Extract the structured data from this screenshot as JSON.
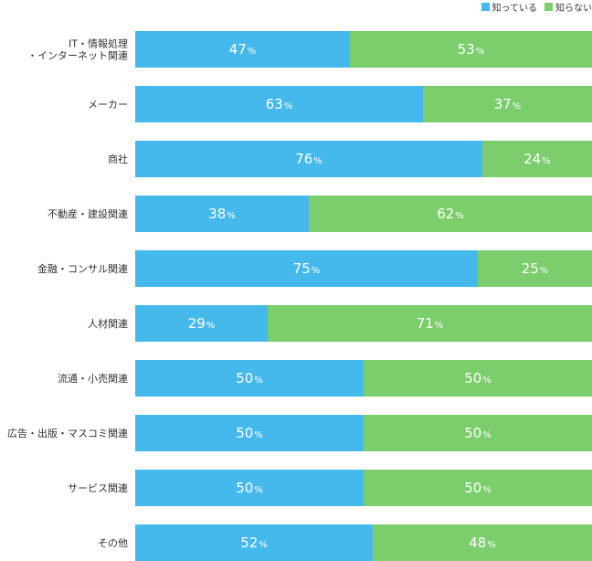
{
  "chart_data": {
    "type": "bar",
    "orientation": "horizontal",
    "stacked": true,
    "unit": "%",
    "categories": [
      [
        "IT・情報処理",
        "・インターネット関連"
      ],
      [
        "メーカー"
      ],
      [
        "商社"
      ],
      [
        "不動産・建設関連"
      ],
      [
        "金融・コンサル関連"
      ],
      [
        "人材関連"
      ],
      [
        "流通・小売関連"
      ],
      [
        "広告・出版・マスコミ関連"
      ],
      [
        "サービス関連"
      ],
      [
        "その他"
      ]
    ],
    "series": [
      {
        "name": "知っている",
        "color": "#45b9ec",
        "values": [
          47,
          63,
          76,
          38,
          75,
          29,
          50,
          50,
          50,
          52
        ]
      },
      {
        "name": "知らない",
        "color": "#7ccd6c",
        "values": [
          53,
          37,
          24,
          62,
          25,
          71,
          50,
          50,
          50,
          48
        ]
      }
    ],
    "xlim": [
      0,
      100
    ],
    "legend": "top-right",
    "grid": false
  }
}
